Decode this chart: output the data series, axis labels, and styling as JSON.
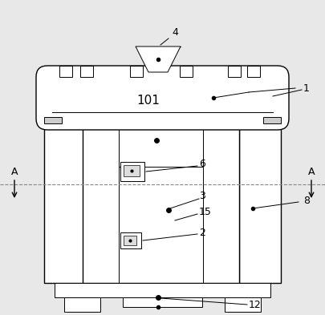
{
  "bg_color": "#e8e8e8",
  "line_color": "#000000",
  "dashed_color": "#888888",
  "fig_w": 4.06,
  "fig_h": 3.93,
  "dpi": 100
}
